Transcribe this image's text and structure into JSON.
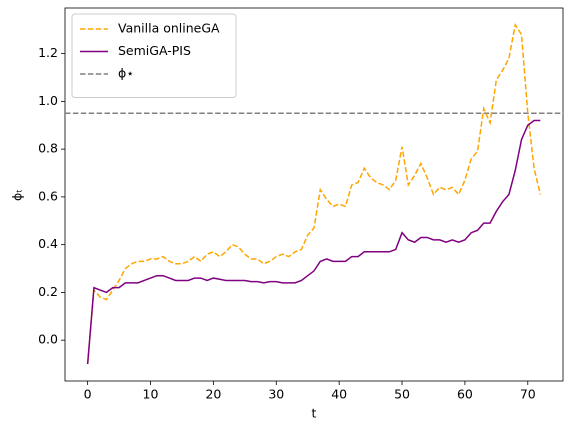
{
  "chart_data": {
    "type": "line",
    "xlabel": "t",
    "ylabel": "ϕₜ",
    "x": [
      0,
      1,
      2,
      3,
      4,
      5,
      6,
      7,
      8,
      9,
      10,
      11,
      12,
      13,
      14,
      15,
      16,
      17,
      18,
      19,
      20,
      21,
      22,
      23,
      24,
      25,
      26,
      27,
      28,
      29,
      30,
      31,
      32,
      33,
      34,
      35,
      36,
      37,
      38,
      39,
      40,
      41,
      42,
      43,
      44,
      45,
      46,
      47,
      48,
      49,
      50,
      51,
      52,
      53,
      54,
      55,
      56,
      57,
      58,
      59,
      60,
      61,
      62,
      63,
      64,
      65,
      66,
      67,
      68,
      69,
      70,
      71,
      72
    ],
    "series": [
      {
        "name": "Vanilla onlineGA",
        "color": "orange",
        "dashed": true,
        "values": [
          -0.1,
          0.21,
          0.18,
          0.17,
          0.21,
          0.25,
          0.3,
          0.32,
          0.33,
          0.33,
          0.34,
          0.34,
          0.35,
          0.33,
          0.32,
          0.32,
          0.33,
          0.35,
          0.33,
          0.36,
          0.37,
          0.35,
          0.37,
          0.4,
          0.39,
          0.36,
          0.34,
          0.34,
          0.32,
          0.33,
          0.35,
          0.36,
          0.35,
          0.37,
          0.38,
          0.44,
          0.47,
          0.63,
          0.59,
          0.56,
          0.57,
          0.56,
          0.65,
          0.66,
          0.72,
          0.68,
          0.66,
          0.65,
          0.63,
          0.67,
          0.81,
          0.65,
          0.69,
          0.74,
          0.68,
          0.61,
          0.64,
          0.63,
          0.64,
          0.61,
          0.67,
          0.76,
          0.79,
          0.97,
          0.91,
          1.09,
          1.13,
          1.18,
          1.32,
          1.28,
          0.95,
          0.72,
          0.61
        ]
      },
      {
        "name": "SemiGA-PIS",
        "color": "purple",
        "dashed": false,
        "values": [
          -0.1,
          0.22,
          0.21,
          0.2,
          0.22,
          0.22,
          0.24,
          0.24,
          0.24,
          0.25,
          0.26,
          0.27,
          0.27,
          0.26,
          0.25,
          0.25,
          0.25,
          0.26,
          0.26,
          0.25,
          0.26,
          0.255,
          0.25,
          0.25,
          0.25,
          0.25,
          0.245,
          0.245,
          0.24,
          0.245,
          0.245,
          0.24,
          0.24,
          0.24,
          0.25,
          0.27,
          0.29,
          0.33,
          0.34,
          0.33,
          0.33,
          0.33,
          0.35,
          0.35,
          0.37,
          0.37,
          0.37,
          0.37,
          0.37,
          0.38,
          0.45,
          0.42,
          0.41,
          0.43,
          0.43,
          0.42,
          0.42,
          0.41,
          0.42,
          0.41,
          0.42,
          0.45,
          0.46,
          0.49,
          0.49,
          0.54,
          0.58,
          0.61,
          0.71,
          0.84,
          0.9,
          0.92,
          0.92
        ]
      }
    ],
    "reference_line": {
      "name": "ϕ⋆",
      "value": 0.95,
      "color": "gray"
    },
    "xlim": [
      -3.6,
      75.6
    ],
    "xticks": [
      0,
      10,
      20,
      30,
      40,
      50,
      60,
      70
    ],
    "ylim": [
      -0.171,
      1.391
    ],
    "yticks": [
      {
        "value": 0,
        "label": "0.0"
      },
      0.2,
      0.4,
      0.6,
      0.8,
      {
        "value": 1,
        "label": "1.0"
      },
      1.2
    ],
    "legend": "upper left"
  }
}
